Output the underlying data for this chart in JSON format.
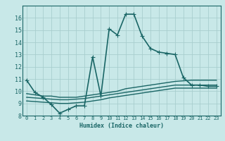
{
  "title": "",
  "xlabel": "Humidex (Indice chaleur)",
  "ylabel": "",
  "background_color": "#c8e8e8",
  "grid_color": "#a8cece",
  "line_color": "#1a6666",
  "xlim": [
    -0.5,
    23.5
  ],
  "ylim": [
    8,
    17
  ],
  "xticks": [
    0,
    1,
    2,
    3,
    4,
    5,
    6,
    7,
    8,
    9,
    10,
    11,
    12,
    13,
    14,
    15,
    16,
    17,
    18,
    19,
    20,
    21,
    22,
    23
  ],
  "yticks": [
    8,
    9,
    10,
    11,
    12,
    13,
    14,
    15,
    16
  ],
  "series": [
    {
      "x": [
        0,
        1,
        2,
        3,
        4,
        5,
        6,
        7,
        8,
        9,
        10,
        11,
        12,
        13,
        14,
        15,
        16,
        17,
        18,
        19,
        20,
        21,
        22,
        23
      ],
      "y": [
        10.9,
        9.9,
        9.5,
        8.9,
        8.2,
        8.5,
        8.8,
        8.8,
        12.8,
        9.6,
        15.1,
        14.6,
        16.3,
        16.3,
        14.5,
        13.5,
        13.2,
        13.1,
        13.0,
        11.1,
        10.5,
        10.5,
        10.4,
        10.4
      ],
      "marker": "+",
      "linewidth": 1.2,
      "markersize": 4
    },
    {
      "x": [
        0,
        1,
        2,
        3,
        4,
        5,
        6,
        7,
        8,
        9,
        10,
        11,
        12,
        13,
        14,
        15,
        16,
        17,
        18,
        19,
        20,
        21,
        22,
        23
      ],
      "y": [
        9.8,
        9.7,
        9.6,
        9.6,
        9.5,
        9.5,
        9.5,
        9.6,
        9.7,
        9.8,
        9.9,
        10.0,
        10.2,
        10.3,
        10.4,
        10.5,
        10.6,
        10.7,
        10.8,
        10.85,
        10.9,
        10.9,
        10.9,
        10.9
      ],
      "marker": null,
      "linewidth": 1.0,
      "markersize": 0
    },
    {
      "x": [
        0,
        1,
        2,
        3,
        4,
        5,
        6,
        7,
        8,
        9,
        10,
        11,
        12,
        13,
        14,
        15,
        16,
        17,
        18,
        19,
        20,
        21,
        22,
        23
      ],
      "y": [
        9.5,
        9.45,
        9.4,
        9.35,
        9.3,
        9.3,
        9.35,
        9.4,
        9.5,
        9.6,
        9.7,
        9.8,
        9.9,
        10.0,
        10.1,
        10.2,
        10.3,
        10.4,
        10.5,
        10.5,
        10.5,
        10.5,
        10.5,
        10.5
      ],
      "marker": null,
      "linewidth": 1.0,
      "markersize": 0
    },
    {
      "x": [
        0,
        1,
        2,
        3,
        4,
        5,
        6,
        7,
        8,
        9,
        10,
        11,
        12,
        13,
        14,
        15,
        16,
        17,
        18,
        19,
        20,
        21,
        22,
        23
      ],
      "y": [
        9.2,
        9.15,
        9.1,
        9.05,
        9.0,
        9.0,
        9.05,
        9.1,
        9.2,
        9.3,
        9.45,
        9.55,
        9.65,
        9.75,
        9.85,
        9.95,
        10.05,
        10.15,
        10.25,
        10.25,
        10.25,
        10.25,
        10.25,
        10.25
      ],
      "marker": null,
      "linewidth": 1.0,
      "markersize": 0
    }
  ]
}
